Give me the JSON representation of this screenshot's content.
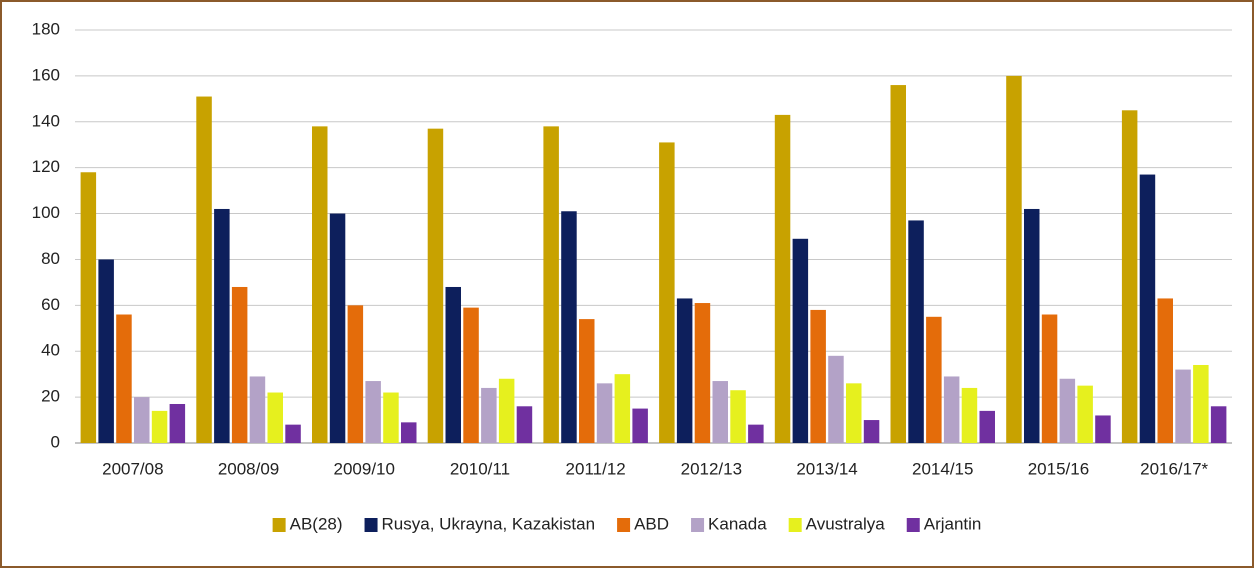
{
  "chart_data": {
    "type": "bar",
    "categories": [
      "2007/08",
      "2008/09",
      "2009/10",
      "2010/11",
      "2011/12",
      "2012/13",
      "2013/14",
      "2014/15",
      "2015/16",
      "2016/17*"
    ],
    "series": [
      {
        "name": "AB(28)",
        "color": "#C8A200",
        "values": [
          118,
          151,
          138,
          137,
          138,
          131,
          143,
          156,
          160,
          145
        ]
      },
      {
        "name": "Rusya, Ukrayna, Kazakistan",
        "color": "#0D1F5C",
        "values": [
          80,
          102,
          100,
          68,
          101,
          63,
          89,
          97,
          102,
          117
        ]
      },
      {
        "name": "ABD",
        "color": "#E46C0A",
        "values": [
          56,
          68,
          60,
          59,
          54,
          61,
          58,
          55,
          56,
          63
        ]
      },
      {
        "name": "Kanada",
        "color": "#B3A2C7",
        "values": [
          20,
          29,
          27,
          24,
          26,
          27,
          38,
          29,
          28,
          32
        ]
      },
      {
        "name": "Avustralya",
        "color": "#E6F01E",
        "values": [
          14,
          22,
          22,
          28,
          30,
          23,
          26,
          24,
          25,
          34
        ]
      },
      {
        "name": "Arjantin",
        "color": "#7030A0",
        "values": [
          17,
          8,
          9,
          16,
          15,
          8,
          10,
          14,
          12,
          16
        ]
      }
    ],
    "ylim": [
      0,
      180
    ],
    "yticks": [
      0,
      20,
      40,
      60,
      80,
      100,
      120,
      140,
      160,
      180
    ],
    "grid": true,
    "legend": "bottom"
  }
}
